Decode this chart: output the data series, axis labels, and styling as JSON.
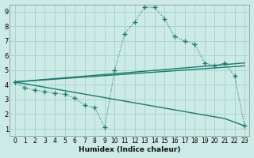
{
  "xlabel": "Humidex (Indice chaleur)",
  "xlim": [
    -0.5,
    23.5
  ],
  "ylim": [
    0.5,
    9.5
  ],
  "xtick_labels": [
    "0",
    "1",
    "2",
    "3",
    "4",
    "5",
    "6",
    "7",
    "8",
    "9",
    "10",
    "11",
    "12",
    "13",
    "14",
    "15",
    "16",
    "17",
    "18",
    "19",
    "20",
    "21",
    "22",
    "23"
  ],
  "xtick_vals": [
    0,
    1,
    2,
    3,
    4,
    5,
    6,
    7,
    8,
    9,
    10,
    11,
    12,
    13,
    14,
    15,
    16,
    17,
    18,
    19,
    20,
    21,
    22,
    23
  ],
  "ytick_vals": [
    1,
    2,
    3,
    4,
    5,
    6,
    7,
    8,
    9
  ],
  "background_color": "#cceae6",
  "grid_color": "#aad4cf",
  "line_color": "#1a7a6e",
  "curve_main_x": [
    0,
    1,
    2,
    3,
    4,
    5,
    6,
    7,
    8,
    9,
    10,
    11,
    12,
    13,
    14,
    15,
    16,
    17,
    18,
    19,
    20,
    21,
    22,
    23
  ],
  "curve_main_y": [
    4.2,
    3.8,
    3.65,
    3.55,
    3.45,
    3.35,
    3.1,
    2.6,
    2.45,
    1.1,
    5.0,
    7.5,
    8.3,
    9.3,
    9.3,
    8.5,
    7.3,
    7.0,
    6.8,
    5.5,
    5.3,
    5.5,
    4.6,
    1.2
  ],
  "line1_x": [
    0,
    23
  ],
  "line1_y": [
    4.2,
    5.5
  ],
  "line2_x": [
    0,
    23
  ],
  "line2_y": [
    4.2,
    5.3
  ],
  "line3_x": [
    0,
    21,
    23
  ],
  "line3_y": [
    4.2,
    1.7,
    1.2
  ]
}
